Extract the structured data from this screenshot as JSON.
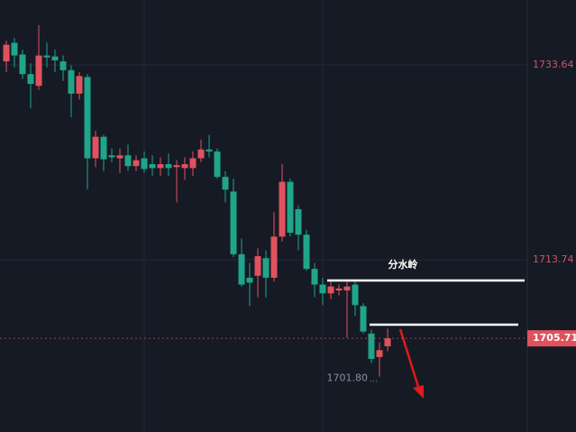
{
  "chart_data": {
    "type": "candlestick",
    "up_color": "#e0525e",
    "down_color": "#1fa58a",
    "open": [
      1734.0,
      1735.9,
      1734.7,
      1732.7,
      1731.5,
      1734.6,
      1734.5,
      1734.0,
      1733.1,
      1730.7,
      1732.4,
      1724.1,
      1726.3,
      1724.4,
      1724.1,
      1724.4,
      1723.3,
      1724.1,
      1723.5,
      1723.1,
      1723.5,
      1723.2,
      1723.1,
      1723.1,
      1724.1,
      1725.0,
      1724.8,
      1722.2,
      1720.7,
      1714.3,
      1711.9,
      1712.1,
      1713.9,
      1711.9,
      1716.1,
      1721.7,
      1718.9,
      1716.3,
      1712.8,
      1711.2,
      1710.3,
      1710.6,
      1710.6,
      1711.2,
      1709.0,
      1706.2,
      1703.8,
      1704.9
    ],
    "high": [
      1736.1,
      1736.4,
      1735.2,
      1733.8,
      1737.7,
      1735.9,
      1735.2,
      1734.6,
      1733.6,
      1732.9,
      1732.7,
      1726.9,
      1726.5,
      1725.1,
      1725.1,
      1725.5,
      1724.4,
      1724.8,
      1724.4,
      1724.2,
      1724.6,
      1723.9,
      1724.2,
      1724.8,
      1726.0,
      1726.5,
      1725.1,
      1722.8,
      1722.0,
      1715.9,
      1713.4,
      1714.9,
      1714.7,
      1718.6,
      1723.5,
      1722.0,
      1719.3,
      1716.8,
      1713.4,
      1711.9,
      1711.5,
      1711.2,
      1711.5,
      1711.5,
      1709.3,
      1706.6,
      1705.3,
      1706.7
    ],
    "low": [
      1732.9,
      1733.4,
      1732.2,
      1729.2,
      1731.1,
      1733.4,
      1732.9,
      1732.0,
      1728.3,
      1730.1,
      1720.9,
      1723.2,
      1722.8,
      1723.7,
      1722.6,
      1722.8,
      1722.8,
      1722.6,
      1722.3,
      1722.3,
      1722.3,
      1719.6,
      1721.9,
      1722.3,
      1723.7,
      1724.2,
      1722.0,
      1719.6,
      1714.0,
      1711.0,
      1709.0,
      1709.9,
      1709.9,
      1711.5,
      1715.6,
      1716.1,
      1714.7,
      1712.6,
      1709.9,
      1709.1,
      1709.7,
      1710.1,
      1705.8,
      1708.0,
      1706.2,
      1703.2,
      1701.8,
      1704.4
    ],
    "close": [
      1735.7,
      1734.6,
      1732.7,
      1731.7,
      1734.6,
      1734.4,
      1734.1,
      1733.1,
      1730.7,
      1732.5,
      1724.1,
      1726.3,
      1724.0,
      1724.2,
      1724.4,
      1723.3,
      1723.9,
      1723.0,
      1723.1,
      1723.5,
      1723.1,
      1723.4,
      1723.5,
      1724.1,
      1725.0,
      1724.8,
      1722.2,
      1720.9,
      1714.3,
      1711.2,
      1711.4,
      1714.1,
      1711.9,
      1716.1,
      1721.7,
      1716.5,
      1716.3,
      1712.8,
      1711.2,
      1710.3,
      1711.0,
      1710.8,
      1711.0,
      1709.1,
      1706.4,
      1703.6,
      1704.5,
      1705.71
    ],
    "ylim": [
      1696.14,
      1740.27
    ],
    "yticks": [
      1733.64,
      1713.74
    ],
    "grid": true,
    "last_price": 1705.71,
    "low_marker": {
      "value": 1701.8,
      "label": "1701.80"
    },
    "annotation": "分水岭"
  }
}
